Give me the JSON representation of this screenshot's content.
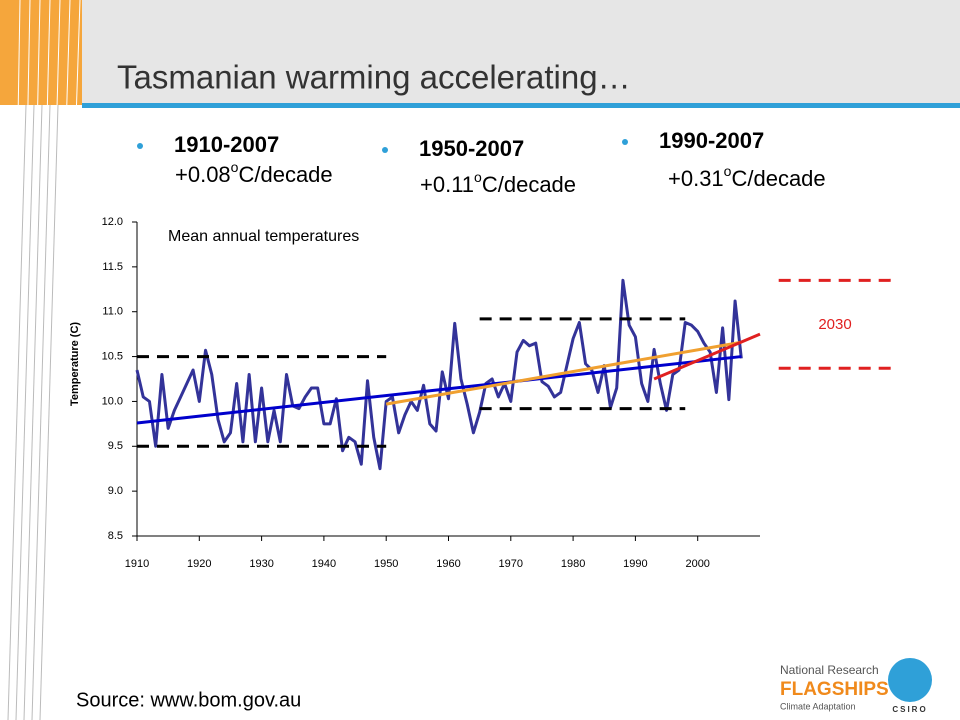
{
  "slide": {
    "title": "Tasmanian warming accelerating…",
    "bullets": [
      {
        "period": "1910-2007",
        "rate": "+0.08",
        "deg": "o",
        "unit": "C/decade"
      },
      {
        "period": "1950-2007",
        "rate": "+0.11",
        "deg": "o",
        "unit": "C/decade"
      },
      {
        "period": "1990-2007",
        "rate": "+0.31",
        "deg": "o",
        "unit": "C/decade"
      }
    ],
    "source": "Source: www.bom.gov.au",
    "logo": {
      "line1": "National Research",
      "line2": "FLAGSHIPS",
      "line3": "Climate Adaptation",
      "org": "CSIRO"
    }
  },
  "chart_data": {
    "type": "line",
    "annotation": "Mean annual temperatures",
    "y_label": "Temperature (C)",
    "projection_label": "2030",
    "xlim": [
      1910,
      2010
    ],
    "xticks": [
      1910,
      1920,
      1930,
      1940,
      1950,
      1960,
      1970,
      1980,
      1990,
      2000
    ],
    "ylim": [
      8.5,
      12
    ],
    "yticks": [
      8.5,
      {
        "value": 9,
        "label": "9.0"
      },
      9.5,
      {
        "value": 10,
        "label": "10.0"
      },
      10.5,
      {
        "value": 11,
        "label": "11.0"
      },
      11.5,
      {
        "value": 12,
        "label": "12.0"
      }
    ],
    "x": [
      1910,
      1911,
      1912,
      1913,
      1914,
      1915,
      1916,
      1917,
      1918,
      1919,
      1920,
      1921,
      1922,
      1923,
      1924,
      1925,
      1926,
      1927,
      1928,
      1929,
      1930,
      1931,
      1932,
      1933,
      1934,
      1935,
      1936,
      1937,
      1938,
      1939,
      1940,
      1941,
      1942,
      1943,
      1944,
      1945,
      1946,
      1947,
      1948,
      1949,
      1950,
      1951,
      1952,
      1953,
      1954,
      1955,
      1956,
      1957,
      1958,
      1959,
      1960,
      1961,
      1962,
      1963,
      1964,
      1965,
      1966,
      1967,
      1968,
      1969,
      1970,
      1971,
      1972,
      1973,
      1974,
      1975,
      1976,
      1977,
      1978,
      1979,
      1980,
      1981,
      1982,
      1983,
      1984,
      1985,
      1986,
      1987,
      1988,
      1989,
      1990,
      1991,
      1992,
      1993,
      1994,
      1995,
      1996,
      1997,
      1998,
      1999,
      2000,
      2001,
      2002,
      2003,
      2004,
      2005,
      2006,
      2007
    ],
    "series": [
      {
        "color": "#333399",
        "values": [
          10.35,
          10.05,
          10.0,
          9.5,
          10.3,
          9.7,
          9.9,
          10.05,
          10.2,
          10.35,
          10.0,
          10.57,
          10.3,
          9.8,
          9.55,
          9.65,
          10.2,
          9.55,
          10.3,
          9.55,
          10.15,
          9.55,
          9.9,
          9.55,
          10.3,
          9.95,
          9.92,
          10.05,
          10.15,
          10.15,
          9.75,
          9.75,
          10.03,
          9.45,
          9.6,
          9.55,
          9.3,
          10.23,
          9.6,
          9.25,
          10.0,
          10.05,
          9.65,
          9.85,
          10.0,
          9.9,
          10.18,
          9.75,
          9.67,
          10.33,
          10.03,
          10.87,
          10.25,
          9.97,
          9.65,
          9.88,
          10.2,
          10.25,
          10.05,
          10.2,
          10.0,
          10.55,
          10.68,
          10.62,
          10.65,
          10.22,
          10.17,
          10.05,
          10.1,
          10.4,
          10.7,
          10.88,
          10.42,
          10.35,
          10.1,
          10.4,
          9.93,
          10.15,
          11.35,
          10.85,
          10.72,
          10.2,
          10.0,
          10.58,
          10.2,
          9.9,
          10.3,
          10.35,
          10.88,
          10.85,
          10.78,
          10.65,
          10.55,
          10.1,
          10.82,
          10.02,
          11.12,
          10.48
        ]
      }
    ],
    "trend_lines": [
      {
        "color": "#0000cc",
        "x": [
          1910,
          2007
        ],
        "values": [
          9.76,
          10.5
        ]
      },
      {
        "color": "#f0a030",
        "x": [
          1950,
          2007
        ],
        "values": [
          9.97,
          10.66
        ]
      },
      {
        "color": "#e02020",
        "x": [
          1993,
          2010
        ],
        "values": [
          10.25,
          10.75
        ]
      }
    ],
    "range_lines": [
      {
        "x": [
          1910,
          1950
        ],
        "y": 10.5
      },
      {
        "x": [
          1910,
          1950
        ],
        "y": 9.5
      },
      {
        "x": [
          1965,
          1998
        ],
        "y": 10.92
      },
      {
        "x": [
          1965,
          1998
        ],
        "y": 9.92
      }
    ],
    "projection_lines": [
      {
        "color": "#e02020",
        "x": [
          2013,
          2032
        ],
        "y": 11.35
      },
      {
        "color": "#e02020",
        "x": [
          2013,
          2032
        ],
        "y": 10.37
      }
    ]
  }
}
